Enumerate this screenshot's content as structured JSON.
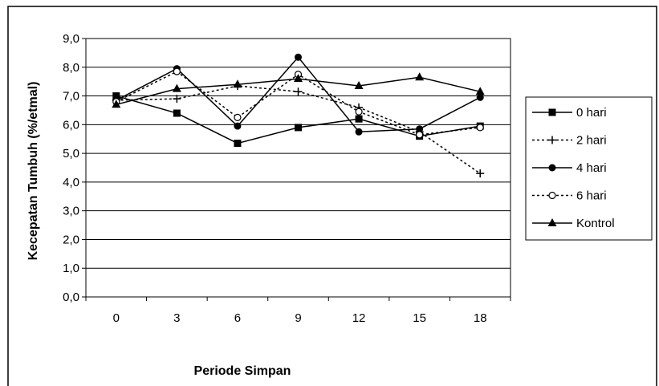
{
  "chart_data": {
    "type": "line",
    "title": "",
    "xlabel": "Periode Simpan",
    "ylabel": "Kecepatan Tumbuh (%/etmal)",
    "categories": [
      "0",
      "3",
      "6",
      "9",
      "12",
      "15",
      "18"
    ],
    "y_ticks": [
      "0,0",
      "1,0",
      "2,0",
      "3,0",
      "4,0",
      "5,0",
      "6,0",
      "7,0",
      "8,0",
      "9,0"
    ],
    "ylim": [
      0,
      9
    ],
    "grid": "horizontal",
    "legend_position": "right",
    "series": [
      {
        "name": "0 hari",
        "values": [
          7.0,
          6.4,
          5.35,
          5.9,
          6.2,
          5.6,
          5.95
        ],
        "marker": "square",
        "dash": "solid"
      },
      {
        "name": "2 hari",
        "values": [
          6.85,
          6.9,
          7.35,
          7.15,
          6.6,
          5.75,
          4.3
        ],
        "marker": "plus",
        "dash": "dotted"
      },
      {
        "name": "4 hari",
        "values": [
          6.85,
          7.95,
          5.95,
          8.35,
          5.75,
          5.85,
          6.95
        ],
        "marker": "circle",
        "dash": "solid"
      },
      {
        "name": "6 hari",
        "values": [
          6.8,
          7.85,
          6.25,
          7.75,
          6.45,
          5.65,
          5.9
        ],
        "marker": "open-circle",
        "dash": "dotted"
      },
      {
        "name": "Kontrol",
        "values": [
          6.7,
          7.25,
          7.4,
          7.6,
          7.35,
          7.65,
          7.15
        ],
        "marker": "triangle",
        "dash": "solid"
      }
    ]
  }
}
